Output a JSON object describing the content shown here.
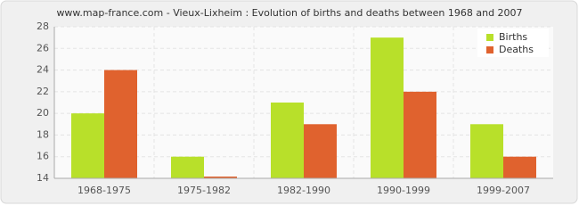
{
  "chart_data": {
    "type": "bar",
    "title": "www.map-france.com - Vieux-Lixheim : Evolution of births and deaths between 1968 and 2007",
    "categories": [
      "1968-1975",
      "1975-1982",
      "1982-1990",
      "1990-1999",
      "1999-2007"
    ],
    "series": [
      {
        "name": "Births",
        "color": "#b8e02a",
        "values": [
          20,
          16,
          21,
          27,
          19
        ]
      },
      {
        "name": "Deaths",
        "color": "#e0622e",
        "values": [
          24,
          14,
          19,
          22,
          16
        ]
      }
    ],
    "ylim": [
      14,
      28
    ],
    "yticks": [
      14,
      16,
      18,
      20,
      22,
      24,
      26,
      28
    ],
    "grid": true,
    "legend": "top-right"
  }
}
